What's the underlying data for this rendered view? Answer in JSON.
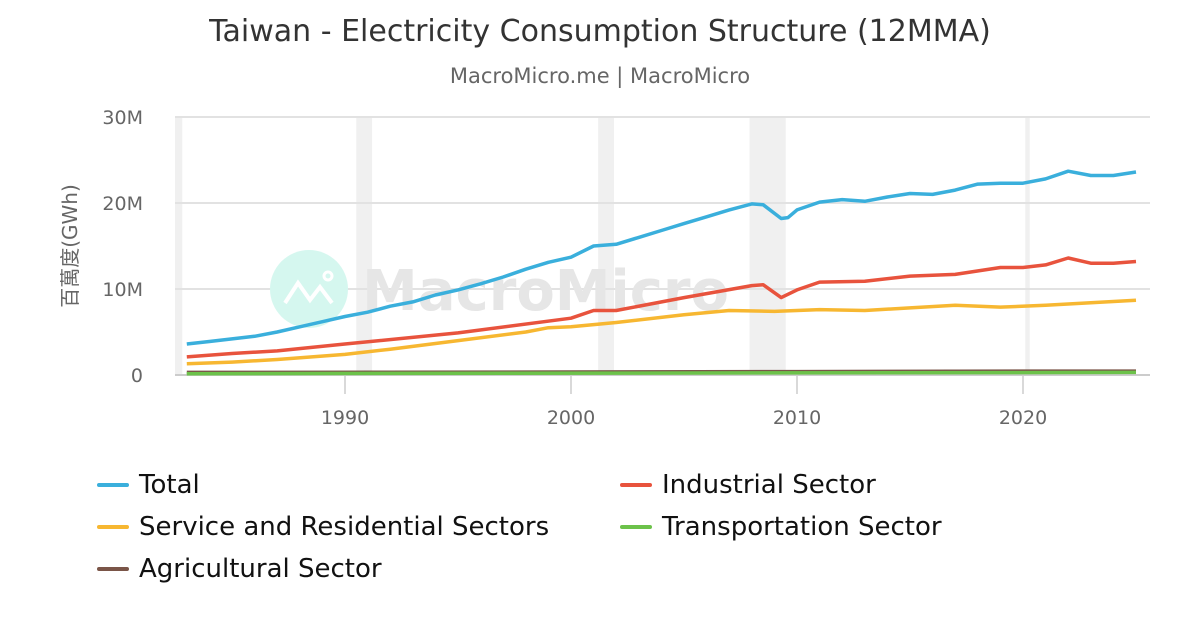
{
  "chart_data": {
    "type": "line",
    "title": "Taiwan - Electricity Consumption Structure (12MMA)",
    "subtitle": "MacroMicro.me | MacroMicro",
    "ylabel": "百萬度(GWh)",
    "xlabel": "",
    "ylim": [
      0,
      30000000
    ],
    "xlim": [
      1982.6,
      2025.8
    ],
    "y_ticks": [
      {
        "v": 0,
        "label": "0"
      },
      {
        "v": 10000000,
        "label": "10M"
      },
      {
        "v": 20000000,
        "label": "20M"
      },
      {
        "v": 30000000,
        "label": "30M"
      }
    ],
    "x_ticks": [
      {
        "v": 1990,
        "label": "1990"
      },
      {
        "v": 2000,
        "label": "2000"
      },
      {
        "v": 2010,
        "label": "2010"
      },
      {
        "v": 2020,
        "label": "2020"
      }
    ],
    "grid": true,
    "legend_placement": "bottom",
    "recession_bands": [
      [
        1982.0,
        1982.8
      ],
      [
        1990.5,
        1991.2
      ],
      [
        2001.2,
        2001.9
      ],
      [
        2007.9,
        2009.5
      ],
      [
        2020.1,
        2020.3
      ]
    ],
    "series": [
      {
        "name": "Total",
        "color": "#3aafdc",
        "x": [
          1983,
          1984,
          1985,
          1986,
          1987,
          1988,
          1989,
          1990,
          1991,
          1992,
          1993,
          1994,
          1995,
          1996,
          1997,
          1998,
          1999,
          2000,
          2001,
          2002,
          2003,
          2004,
          2005,
          2006,
          2007,
          2008,
          2008.5,
          2009.3,
          2009.6,
          2010,
          2011,
          2012,
          2013,
          2014,
          2015,
          2016,
          2017,
          2018,
          2019,
          2020,
          2021,
          2022,
          2023,
          2024,
          2025
        ],
        "values": [
          3600000,
          3900000,
          4200000,
          4500000,
          5000000,
          5600000,
          6200000,
          6800000,
          7300000,
          8000000,
          8500000,
          9300000,
          9900000,
          10600000,
          11400000,
          12300000,
          13100000,
          13700000,
          15000000,
          15200000,
          16000000,
          16800000,
          17600000,
          18400000,
          19200000,
          19900000,
          19800000,
          18200000,
          18300000,
          19200000,
          20100000,
          20400000,
          20200000,
          20700000,
          21100000,
          21000000,
          21500000,
          22200000,
          22300000,
          22300000,
          22800000,
          23700000,
          23200000,
          23200000,
          23600000
        ]
      },
      {
        "name": "Industrial Sector",
        "color": "#e8533d",
        "x": [
          1983,
          1985,
          1987,
          1990,
          1995,
          2000,
          2001,
          2002,
          2005,
          2008,
          2008.5,
          2009.3,
          2010,
          2011,
          2013,
          2015,
          2017,
          2019,
          2020,
          2021,
          2022,
          2023,
          2024,
          2025
        ],
        "values": [
          2100000,
          2500000,
          2800000,
          3600000,
          4900000,
          6600000,
          7500000,
          7500000,
          9000000,
          10400000,
          10500000,
          9000000,
          9900000,
          10800000,
          10900000,
          11500000,
          11700000,
          12500000,
          12500000,
          12800000,
          13600000,
          13000000,
          13000000,
          13200000
        ]
      },
      {
        "name": "Service and Residential Sectors",
        "color": "#f7b731",
        "x": [
          1983,
          1985,
          1987,
          1990,
          1992,
          1995,
          1998,
          1999,
          2000,
          2002,
          2005,
          2007,
          2009,
          2011,
          2013,
          2015,
          2017,
          2019,
          2021,
          2023,
          2025
        ],
        "values": [
          1300000,
          1500000,
          1800000,
          2400000,
          3000000,
          4000000,
          5000000,
          5500000,
          5600000,
          6100000,
          7000000,
          7500000,
          7400000,
          7600000,
          7500000,
          7800000,
          8100000,
          7900000,
          8100000,
          8400000,
          8700000
        ]
      },
      {
        "name": "Transportation Sector",
        "color": "#6cc24a",
        "x": [
          1983,
          2025
        ],
        "values": [
          150000,
          300000
        ]
      },
      {
        "name": "Agricultural Sector",
        "color": "#7a5548",
        "x": [
          1983,
          2000,
          2010,
          2020,
          2025
        ],
        "values": [
          300000,
          350000,
          400000,
          450000,
          450000
        ]
      }
    ]
  },
  "watermark": "MacroMicro"
}
